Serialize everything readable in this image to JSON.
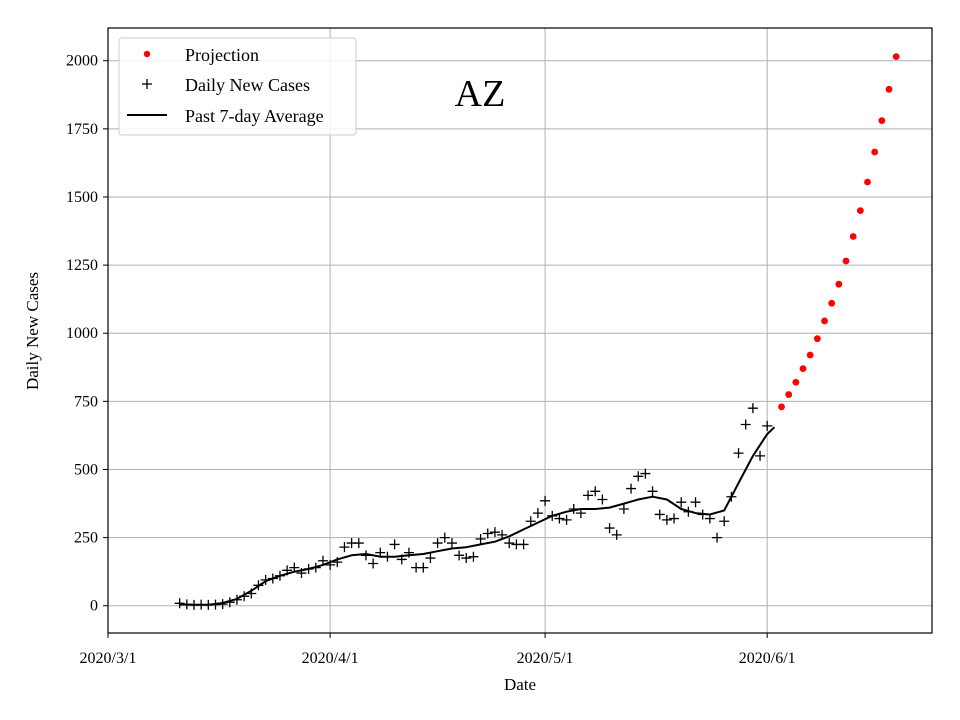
{
  "chart_data": {
    "type": "scatter",
    "title": "AZ",
    "xlabel": "Date",
    "ylabel": "Daily New Cases",
    "x_tick_labels": [
      "2020/3/1",
      "2020/4/1",
      "2020/5/1",
      "2020/6/1"
    ],
    "x_tick_days": [
      0,
      31,
      61,
      92
    ],
    "y_ticks": [
      0,
      250,
      500,
      750,
      1000,
      1250,
      1500,
      1750,
      2000
    ],
    "y_tick_labels": [
      "0",
      "250",
      "500",
      "750",
      "1000",
      "1250",
      "1500",
      "1750",
      "2000"
    ],
    "xlim_days": [
      0,
      115
    ],
    "ylim": [
      -100,
      2120
    ],
    "grid": true,
    "legend_position": "upper-left",
    "day_axis_note": "x values are days since 2020/3/1",
    "series": [
      {
        "name": "Projection",
        "kind": "scatter-dot",
        "color": "#ff0000",
        "x": [
          94,
          95,
          96,
          97,
          98,
          99,
          100,
          101,
          102,
          103,
          104,
          105,
          106,
          107,
          108,
          109,
          110,
          111
        ],
        "y": [
          730,
          775,
          820,
          870,
          920,
          980,
          1045,
          1110,
          1180,
          1265,
          1355,
          1450,
          1555,
          1665,
          1780,
          1895,
          2015,
          2015
        ]
      },
      {
        "name": "Daily New Cases",
        "kind": "scatter-plus",
        "color": "#000000",
        "x": [
          10,
          11,
          12,
          13,
          14,
          15,
          16,
          17,
          18,
          19,
          20,
          21,
          22,
          23,
          24,
          25,
          26,
          27,
          28,
          29,
          30,
          31,
          32,
          33,
          34,
          35,
          36,
          37,
          38,
          39,
          40,
          41,
          42,
          43,
          44,
          45,
          46,
          47,
          48,
          49,
          50,
          51,
          52,
          53,
          54,
          55,
          56,
          57,
          58,
          59,
          60,
          61,
          62,
          63,
          64,
          65,
          66,
          67,
          68,
          69,
          70,
          71,
          72,
          73,
          74,
          75,
          76,
          77,
          78,
          79,
          80,
          81,
          82,
          83,
          84,
          85,
          86,
          87,
          88,
          89,
          90,
          91,
          92
        ],
        "y": [
          9,
          5,
          3,
          4,
          3,
          4,
          6,
          13,
          22,
          35,
          45,
          75,
          95,
          100,
          110,
          130,
          140,
          120,
          135,
          140,
          165,
          150,
          160,
          215,
          230,
          230,
          185,
          155,
          195,
          180,
          225,
          170,
          195,
          140,
          140,
          175,
          230,
          250,
          230,
          185,
          175,
          180,
          245,
          265,
          270,
          260,
          230,
          225,
          225,
          310,
          340,
          385,
          330,
          320,
          315,
          355,
          340,
          405,
          420,
          390,
          285,
          260,
          355,
          430,
          475,
          485,
          420,
          335,
          315,
          320,
          380,
          345,
          380,
          335,
          320,
          250,
          310,
          400,
          560,
          665,
          725,
          550,
          660
        ],
        "y_note": "last point overlaps 2020/6/2 value ~655"
      },
      {
        "name": "Past 7-day Average",
        "kind": "line",
        "color": "#000000",
        "x": [
          10,
          12,
          14,
          16,
          18,
          20,
          22,
          24,
          26,
          28,
          30,
          32,
          34,
          36,
          38,
          40,
          42,
          44,
          46,
          48,
          50,
          52,
          54,
          56,
          58,
          60,
          62,
          64,
          66,
          68,
          70,
          72,
          74,
          76,
          78,
          80,
          82,
          84,
          86,
          88,
          90,
          92,
          93
        ],
        "y": [
          5,
          4,
          4,
          10,
          25,
          55,
          90,
          110,
          125,
          135,
          150,
          170,
          185,
          190,
          180,
          180,
          185,
          190,
          200,
          210,
          215,
          225,
          235,
          255,
          280,
          305,
          330,
          345,
          355,
          355,
          360,
          375,
          390,
          400,
          390,
          355,
          340,
          335,
          350,
          450,
          550,
          630,
          655
        ]
      }
    ],
    "legend": [
      {
        "label": "Projection"
      },
      {
        "label": "Daily New Cases"
      },
      {
        "label": "Past 7-day Average"
      }
    ]
  }
}
